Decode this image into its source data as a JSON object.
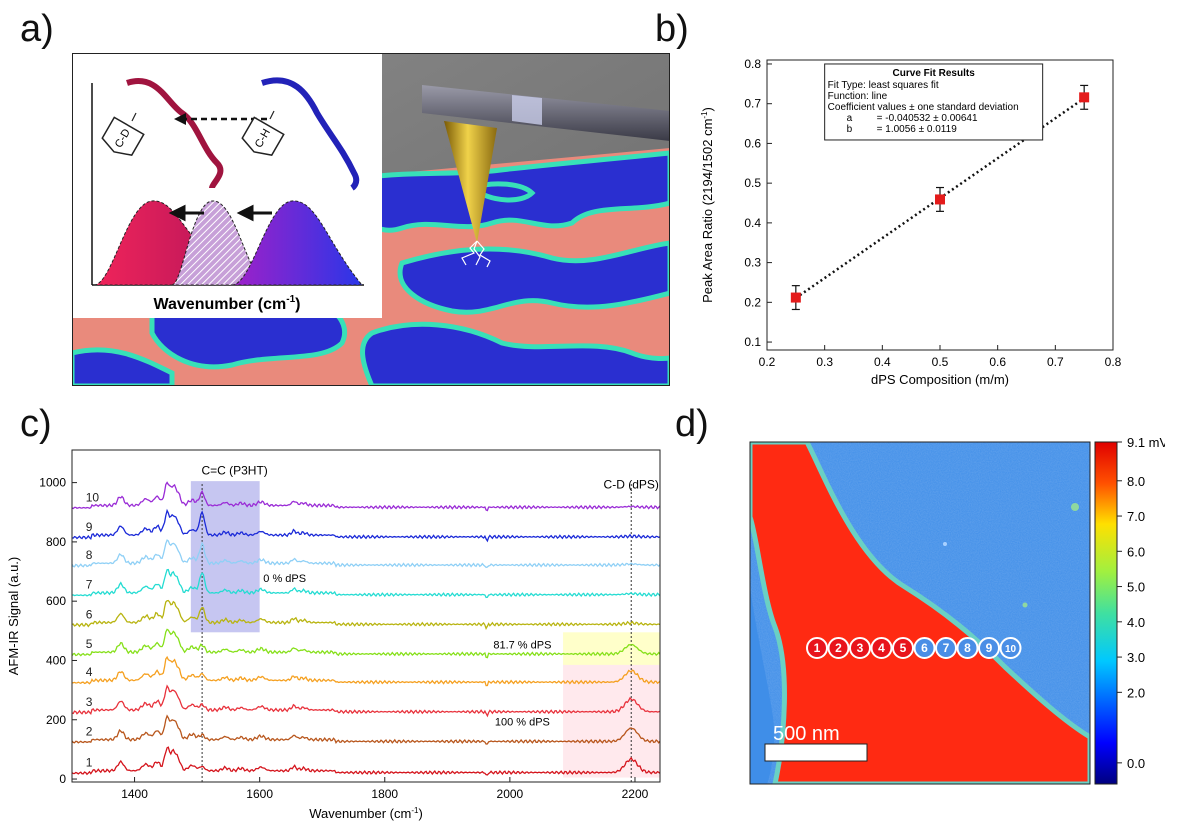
{
  "panel_labels": {
    "a": "a)",
    "b": "b)",
    "c": "c)",
    "d": "d)"
  },
  "panel_a": {
    "inset_xlabel": "Wavenumber (cm",
    "inset_xlabel_sup": "-1",
    "inset_xlabel_end": ")",
    "tag_left": "C-D",
    "tag_right": "C-H",
    "colors": {
      "floor_salmon": "#e98a7c",
      "floor_blue": "#2a2fd0",
      "domain_edge": "#38e0b8",
      "wall_grey": "#7b7b7b",
      "tip_gold": "#c9a321",
      "peak_red": "#e8245a",
      "peak_purple": "#8b25d6",
      "chain_red": "#a0143f",
      "chain_blue": "#2222b8"
    }
  },
  "chart_data": [
    {
      "id": "b",
      "type": "scatter",
      "xlabel": "dPS Composition (m/m)",
      "ylabel": "Peak Area Ratio (2194/1502 cm",
      "ylabel_sup": "-1",
      "ylabel_end": ")",
      "xlim": [
        0.2,
        0.8
      ],
      "ylim": [
        0.08,
        0.81
      ],
      "xticks": [
        0.2,
        0.3,
        0.4,
        0.5,
        0.6,
        0.7,
        0.8
      ],
      "yticks": [
        0.1,
        0.2,
        0.3,
        0.4,
        0.5,
        0.6,
        0.7,
        0.8
      ],
      "points": [
        {
          "x": 0.25,
          "y": 0.212,
          "err": 0.03
        },
        {
          "x": 0.5,
          "y": 0.459,
          "err": 0.03
        },
        {
          "x": 0.75,
          "y": 0.716,
          "err": 0.03
        }
      ],
      "fit": {
        "a": -0.040532,
        "b": 1.0056
      },
      "fit_box": {
        "title": "Curve Fit Results",
        "lines": [
          "Fit Type: least squares fit",
          "Function: line",
          "Coefficient values ± one standard deviation"
        ],
        "coefs": [
          {
            "name": "a",
            "value": "=  -0.040532 ± 0.00641"
          },
          {
            "name": "b",
            "value": "=  1.0056 ± 0.0119"
          }
        ]
      },
      "marker_color": "#e41b1b"
    },
    {
      "id": "c",
      "type": "line",
      "xlabel": "Wavenumber (cm",
      "xlabel_sup": "-1",
      "xlabel_end": ")",
      "ylabel": "AFM-IR Signal (a.u.)",
      "xlim": [
        1300,
        2240
      ],
      "ylim": [
        -10,
        1110
      ],
      "xticks": [
        1400,
        1600,
        1800,
        2000,
        2200
      ],
      "yticks": [
        0,
        200,
        400,
        600,
        800,
        1000
      ],
      "series": [
        {
          "name": "1",
          "offset": 20,
          "color": "#d4141c",
          "cc": 0.35,
          "cd": 1.0
        },
        {
          "name": "2",
          "offset": 125,
          "color": "#b8561c",
          "cc": 0.4,
          "cd": 1.0
        },
        {
          "name": "3",
          "offset": 225,
          "color": "#e8323c",
          "cc": 0.45,
          "cd": 0.95
        },
        {
          "name": "4",
          "offset": 325,
          "color": "#f5a020",
          "cc": 0.55,
          "cd": 0.85
        },
        {
          "name": "5",
          "offset": 420,
          "color": "#86e01a",
          "cc": 0.6,
          "cd": 0.7
        },
        {
          "name": "6",
          "offset": 520,
          "color": "#b8b410",
          "cc": 1.3,
          "cd": 0.1
        },
        {
          "name": "7",
          "offset": 620,
          "color": "#24dcd2",
          "cc": 1.7,
          "cd": 0.08
        },
        {
          "name": "8",
          "offset": 720,
          "color": "#8fd0f6",
          "cc": 1.6,
          "cd": 0.08
        },
        {
          "name": "9",
          "offset": 815,
          "color": "#1b2ad8",
          "cc": 1.9,
          "cd": 0.05
        },
        {
          "name": "10",
          "offset": 915,
          "color": "#9a2cd6",
          "cc": 1.1,
          "cd": 0.05
        }
      ],
      "annotations": {
        "cc_label": "C=C (P3HT)",
        "cd_label": "C-D (dPS)",
        "dps0": "0 % dPS",
        "dps817": "81.7 % dPS",
        "dps100": "100 % dPS"
      },
      "regions": [
        {
          "x0": 1490,
          "x1": 1600,
          "y0": 495,
          "y1": 1005,
          "color": "#5b5bd6"
        },
        {
          "x0": 2085,
          "x1": 2240,
          "y0": 385,
          "y1": 495,
          "color": "#ffff66"
        },
        {
          "x0": 2085,
          "x1": 2240,
          "y0": 5,
          "y1": 385,
          "color": "#ffc0cc"
        }
      ],
      "dashed_lines": [
        1508,
        2194
      ]
    },
    {
      "id": "d",
      "type": "heatmap",
      "colorbar_ticks": [
        "9.1 mV",
        "8.0",
        "7.0",
        "6.0",
        "5.0",
        "4.0",
        "3.0",
        "2.0",
        "0.0"
      ],
      "colorbar_values": [
        9.1,
        8.0,
        7.0,
        6.0,
        5.0,
        4.0,
        3.0,
        2.0,
        0.0
      ],
      "scale_bar": "500 nm",
      "points": [
        "1",
        "2",
        "3",
        "4",
        "5",
        "6",
        "7",
        "8",
        "9",
        "10"
      ],
      "point_colors": [
        "#e8141c",
        "#e8141c",
        "#e8141c",
        "#e8141c",
        "#e8141c",
        "#4a8ee6",
        "#4a8ee6",
        "#4a8ee6",
        "#4a8ee6",
        "#4a8ee6"
      ],
      "map_colors": {
        "high": "#ff2a12",
        "low": "#3f8ee8",
        "edge": "#6ad0c4"
      }
    }
  ]
}
